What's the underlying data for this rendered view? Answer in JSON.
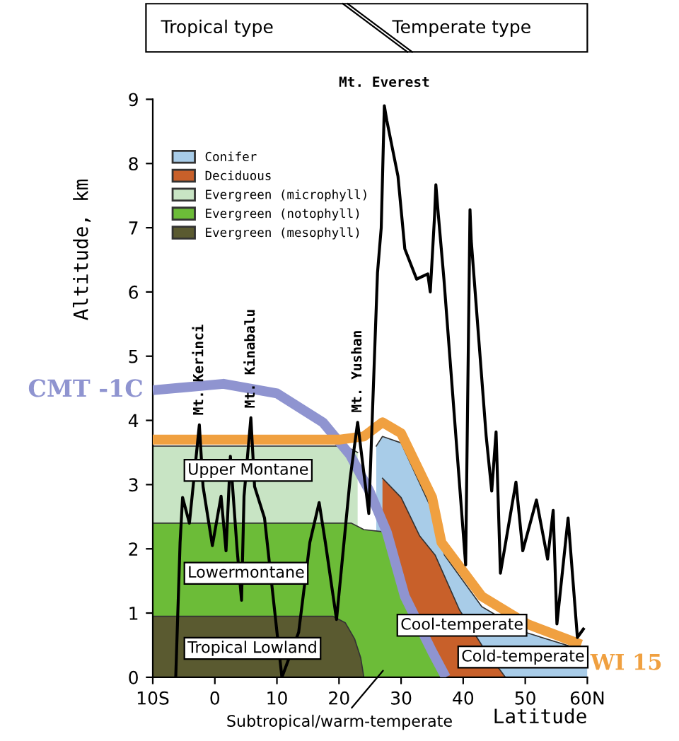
{
  "chart_data": {
    "type": "area",
    "xlabel": "Latitude",
    "ylabel": "Altitude, km",
    "xlim": [
      -10,
      60
    ],
    "ylim": [
      0,
      9
    ],
    "xticks": [
      {
        "value": -10,
        "label": "10S"
      },
      0,
      10,
      20,
      30,
      40,
      50,
      {
        "value": 60,
        "label": "60N"
      }
    ],
    "yticks": [
      0,
      1,
      2,
      3,
      4,
      5,
      6,
      7,
      8,
      9
    ],
    "grid": false,
    "legend": "top left",
    "series": [
      {
        "name": "Conifer",
        "color": "#a8cce8",
        "x": [
          26,
          27,
          30,
          35,
          37,
          43,
          50,
          60
        ],
        "values": [
          3.6,
          3.75,
          3.65,
          2.6,
          1.9,
          1.1,
          0.7,
          0.4
        ]
      },
      {
        "name": "Deciduous",
        "color": "#c8602a",
        "x": [
          27,
          30,
          33,
          35.5,
          39.4,
          43,
          46.8
        ],
        "values": [
          3.1,
          2.8,
          2.2,
          1.9,
          1.05,
          0.5,
          0
        ]
      },
      {
        "name": "Evergreen (microphyll)",
        "color": "#c8e4c4",
        "x": [
          -10,
          21,
          23
        ],
        "values": [
          3.6,
          3.6,
          3.5
        ]
      },
      {
        "name": "Evergreen (notophyll)",
        "color": "#6cbc38",
        "x": [
          -10,
          22,
          24,
          27.7,
          30.6,
          35,
          37.2
        ],
        "values": [
          2.4,
          2.4,
          2.3,
          2.26,
          1.26,
          0.4,
          0
        ]
      },
      {
        "name": "Evergreen (mesophyll)",
        "color": "#5a5a30",
        "x": [
          -10,
          19,
          21,
          22.5,
          23.5,
          24
        ],
        "values": [
          0.95,
          0.95,
          0.85,
          0.6,
          0.3,
          0
        ]
      },
      {
        "name": "CMT -1C",
        "type": "line",
        "color": "#8f94d0",
        "x": [
          -10,
          1.4,
          10,
          17.4,
          21.8,
          24.9,
          27.7,
          30.6,
          35,
          37.2
        ],
        "values": [
          4.47,
          4.57,
          4.42,
          3.97,
          3.46,
          2.9,
          2.26,
          1.26,
          0.4,
          0
        ]
      },
      {
        "name": "WI 15",
        "type": "line",
        "color": "#f0a040",
        "x": [
          -10,
          20,
          24,
          27,
          30,
          35,
          36.5,
          43,
          50.3,
          59
        ],
        "values": [
          3.7,
          3.7,
          3.75,
          3.97,
          3.8,
          2.8,
          2.1,
          1.26,
          0.83,
          0.51
        ]
      },
      {
        "type": "line",
        "color": "#000000",
        "x": [
          -6.3,
          -5.6,
          -5.2,
          -4.1,
          -2.5,
          -1.9,
          -0.4,
          1,
          1.8,
          2.5,
          3.6,
          4.3,
          4.7,
          5.8,
          6.4,
          8,
          10.8,
          13.5,
          15.3,
          16.8,
          17.8,
          19.6,
          21.8,
          23,
          24.8,
          26.2,
          26.8,
          27.3,
          27.7,
          29.5,
          30.6,
          32.5,
          34.3,
          34.7,
          35.4,
          35.6,
          36,
          36.9,
          40.4,
          41.1,
          41.3,
          43.7,
          44.6,
          45.3,
          46,
          48.5,
          49.6,
          51.8,
          53.6,
          54.5,
          55.1,
          56.9,
          58.4,
          59.5
        ],
        "values": [
          0,
          2.1,
          2.8,
          2.4,
          3.93,
          2.97,
          2.05,
          2.82,
          1.97,
          3.44,
          1.97,
          1.2,
          2.82,
          4.04,
          2.97,
          2.48,
          0,
          0.7,
          2.1,
          2.72,
          2.1,
          0.9,
          3.1,
          3.97,
          2.55,
          6.3,
          7.0,
          8.9,
          8.67,
          7.8,
          6.67,
          6.2,
          6.28,
          6.0,
          7.2,
          7.67,
          7.2,
          6.2,
          1.75,
          7.28,
          6.8,
          3.76,
          2.9,
          3.82,
          1.62,
          3.04,
          1.97,
          2.76,
          1.84,
          2.6,
          0.83,
          2.48,
          0.62,
          0.77
        ]
      }
    ],
    "annotations": [
      "Tropical type",
      "Temperate type",
      {
        "text": "Mt. Everest",
        "x": 27.3,
        "y": 8.9
      },
      {
        "text": "Mt. Kerinci",
        "x": -2.5,
        "y": 3.93
      },
      {
        "text": "Mt. Kinabalu",
        "x": 5.8,
        "y": 4.04
      },
      {
        "text": "Mt. Yushan",
        "x": 23,
        "y": 3.97
      },
      "Upper Montane",
      "Lowermontane",
      "Tropical Lowland",
      "Cool-temperate",
      "Cold-temperate",
      {
        "text": "Subtropical/warm-temperate",
        "x": 27.5,
        "y": 0.15
      }
    ]
  }
}
